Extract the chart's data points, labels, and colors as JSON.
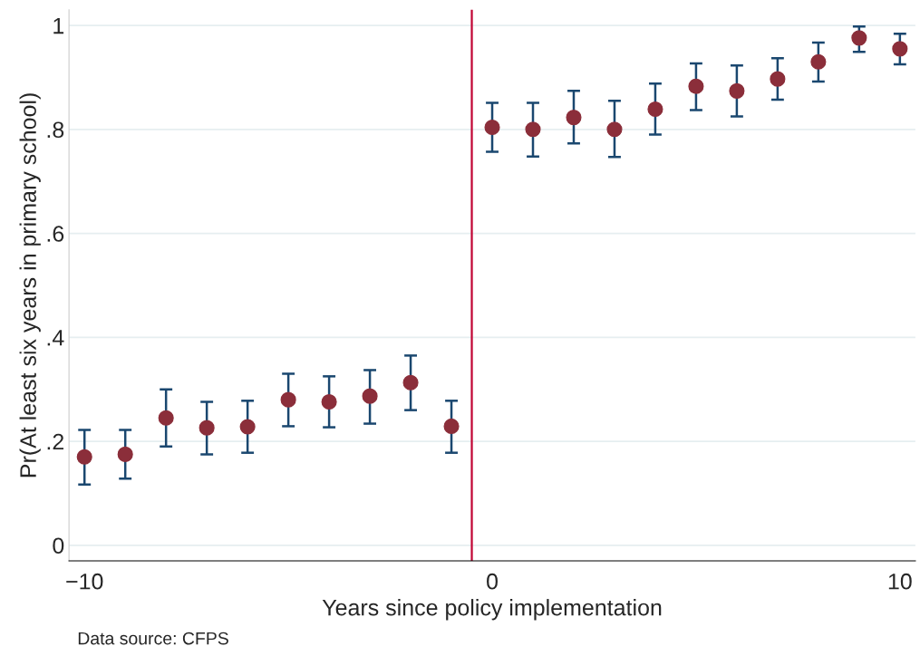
{
  "chart_data": {
    "type": "scatter",
    "xlabel": "Years since policy implementation",
    "ylabel": "Pr(At least six years in primary school)",
    "x": [
      -10,
      -9,
      -8,
      -7,
      -6,
      -5,
      -4,
      -3,
      -2,
      -1,
      0,
      1,
      2,
      3,
      4,
      5,
      6,
      7,
      8,
      9,
      10
    ],
    "series": [
      {
        "color": "#8b2e3a",
        "values": [
          0.17,
          0.175,
          0.245,
          0.226,
          0.228,
          0.28,
          0.276,
          0.287,
          0.313,
          0.229,
          0.804,
          0.8,
          0.823,
          0.8,
          0.839,
          0.883,
          0.874,
          0.897,
          0.93,
          0.976,
          0.955
        ],
        "errors": [
          [
            0.117,
            0.222
          ],
          [
            0.128,
            0.222
          ],
          [
            0.19,
            0.3
          ],
          [
            0.175,
            0.276
          ],
          [
            0.178,
            0.278
          ],
          [
            0.229,
            0.33
          ],
          [
            0.227,
            0.325
          ],
          [
            0.234,
            0.337
          ],
          [
            0.26,
            0.365
          ],
          [
            0.178,
            0.278
          ],
          [
            0.757,
            0.851
          ],
          [
            0.748,
            0.851
          ],
          [
            0.773,
            0.874
          ],
          [
            0.747,
            0.855
          ],
          [
            0.79,
            0.888
          ],
          [
            0.837,
            0.927
          ],
          [
            0.825,
            0.923
          ],
          [
            0.857,
            0.937
          ],
          [
            0.892,
            0.967
          ],
          [
            0.949,
            0.998
          ],
          [
            0.925,
            0.984
          ]
        ]
      }
    ],
    "marker": "circle",
    "grid": "y",
    "xlim": [
      -10.38,
      10.38
    ],
    "xticks": [
      {
        "value": -10,
        "label": "−10"
      },
      0,
      10
    ],
    "ylim": [
      -0.03,
      1.03
    ],
    "yticks": [
      0,
      {
        "value": 0.2,
        "label": ".2"
      },
      {
        "value": 0.4,
        "label": ".4"
      },
      {
        "value": 0.6,
        "label": ".6"
      },
      {
        "value": 0.8,
        "label": ".8"
      },
      1
    ],
    "ref_lines": [
      {
        "axis": "x",
        "value": -0.5,
        "color": "#c10534",
        "line_style": "solid"
      }
    ],
    "annotations": [
      "Data source: CFPS"
    ]
  }
}
